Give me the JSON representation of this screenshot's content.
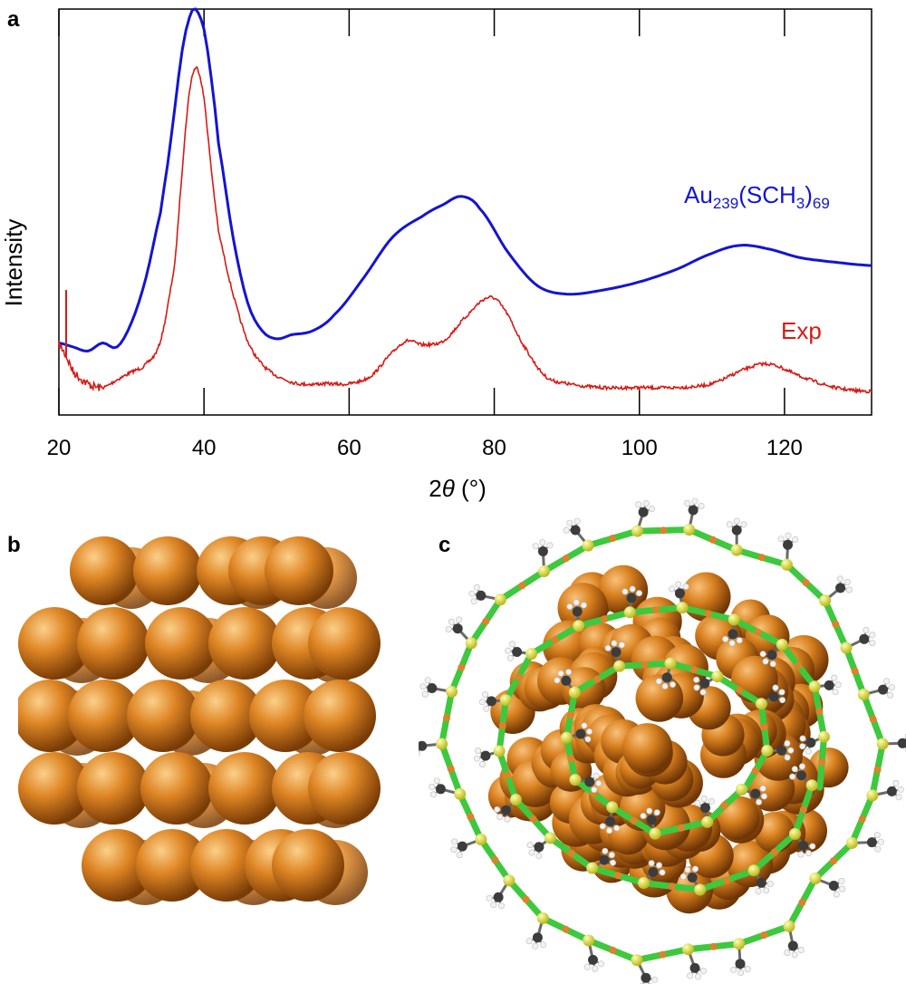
{
  "panels": {
    "a": "a",
    "b": "b",
    "c": "c"
  },
  "chart_data": {
    "type": "line",
    "xlabel_prefix": "2",
    "xlabel_symbol": "θ",
    "xlabel_unit": " (°)",
    "ylabel": "Intensity",
    "xlim": [
      20,
      132
    ],
    "x_ticks": [
      20,
      40,
      60,
      80,
      100,
      120
    ],
    "y_ticks_shown": false,
    "grid": false,
    "series": [
      {
        "name_main": "Au",
        "name_sub1": "239",
        "name_mid": "(SCH",
        "name_sub2": "3",
        "name_close": ")",
        "name_sub3": "69",
        "color": "#1414d2",
        "x": [
          20,
          22,
          24,
          26,
          28,
          30,
          32,
          34,
          35,
          36,
          37,
          38,
          38.8,
          40,
          41,
          42,
          44,
          46,
          48,
          50,
          52,
          55,
          58,
          62,
          66,
          70,
          73,
          75.5,
          78,
          82,
          86,
          90,
          95,
          100,
          105,
          110,
          114,
          118,
          122,
          126,
          132
        ],
        "y": [
          18,
          17,
          16,
          18,
          17,
          23,
          34,
          50,
          62,
          76,
          90,
          98,
          100,
          95,
          83,
          67,
          44,
          28,
          21,
          19,
          20,
          21,
          25,
          34,
          44,
          49,
          52,
          54,
          51,
          40,
          32,
          30,
          31,
          33,
          36,
          40,
          42,
          41,
          39,
          38,
          37
        ]
      },
      {
        "name": "Exp",
        "color": "#d61a14",
        "noise": true,
        "x": [
          20,
          21,
          22,
          24,
          26,
          28,
          30,
          32,
          34,
          36,
          37,
          38,
          39,
          40,
          41,
          42,
          44,
          46,
          48,
          50,
          53,
          57,
          60,
          63,
          66,
          68,
          70,
          73,
          76,
          79,
          81,
          84,
          87,
          90,
          95,
          100,
          105,
          110,
          115,
          118,
          122,
          127,
          132
        ],
        "y": [
          15,
          12,
          8,
          5,
          4,
          6,
          8,
          10,
          16,
          36,
          60,
          80,
          86,
          78,
          60,
          44,
          28,
          16,
          10,
          7,
          5,
          5,
          5,
          7,
          13,
          16,
          15,
          16,
          22,
          27,
          25,
          15,
          7,
          5,
          4,
          4,
          4,
          5,
          9,
          10,
          7,
          4,
          3
        ]
      }
    ]
  },
  "colors": {
    "gold_light": "#f5b25a",
    "gold": "#d97b1c",
    "gold_dark": "#8a4508",
    "bond_green": "#3ec83e",
    "sulfur_yellow": "#e8e84a",
    "carbon_gray": "#4a4a4a",
    "hydrogen_white": "#f2f2f2"
  }
}
